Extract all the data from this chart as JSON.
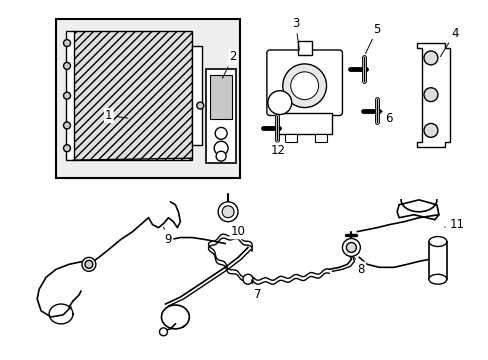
{
  "background_color": "#ffffff",
  "line_color": "#000000",
  "label_color": "#000000",
  "fig_width": 4.89,
  "fig_height": 3.6,
  "dpi": 100,
  "box_bg": "#e8e8e8",
  "condenser_hatch_color": "#888888"
}
